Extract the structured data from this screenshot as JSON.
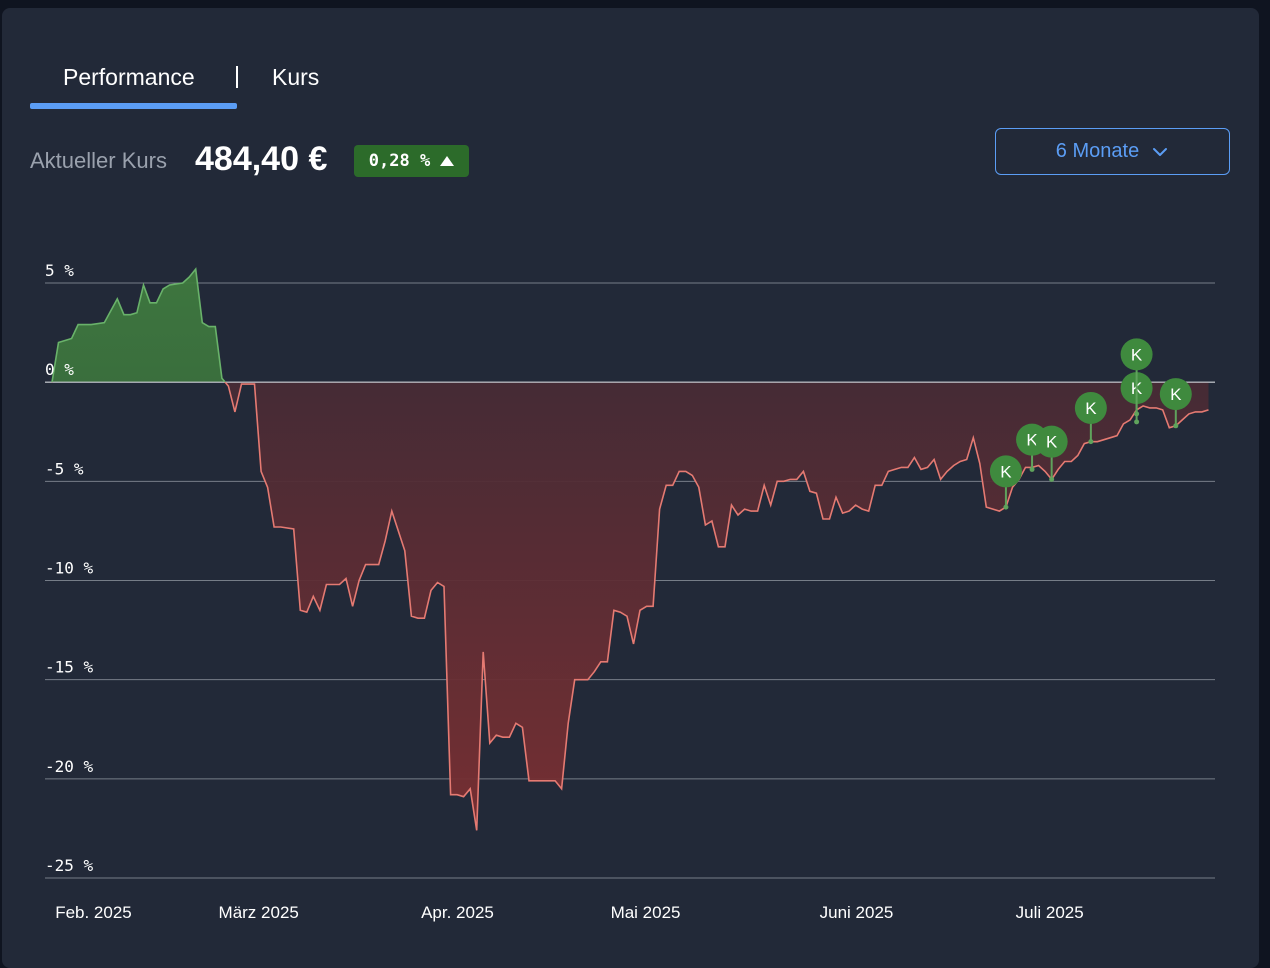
{
  "tabs": {
    "performance": "Performance",
    "kurs": "Kurs"
  },
  "price": {
    "label": "Aktueller Kurs",
    "value": "484,40 €",
    "change": "0,28 %"
  },
  "range": {
    "selected": "6 Monate"
  },
  "colors": {
    "accent": "#5b9df5",
    "positive_badge": "#2c6b2a",
    "gain_line": "#69b26a",
    "loss_line": "#e57a72",
    "marker": "#3f8a3e",
    "grid": "#8c929c"
  },
  "icons": {
    "change": "triangle-up-icon",
    "dropdown": "chevron-down-icon",
    "marker": "K"
  },
  "chart_data": {
    "type": "area",
    "yticks": [
      "5 %",
      "0 %",
      "-5 %",
      "-10 %",
      "-15 %",
      "-20 %",
      "-25 %"
    ],
    "ylim": [
      -25,
      5
    ],
    "xlim": [
      "2025-01-31",
      "2025-07-28"
    ],
    "xticks": [
      {
        "date": "2025-02-06",
        "label": "Feb. 2025"
      },
      {
        "date": "2025-03-03",
        "label": "März 2025"
      },
      {
        "date": "2025-04-03",
        "label": "Apr. 2025"
      },
      {
        "date": "2025-05-02",
        "label": "Mai 2025"
      },
      {
        "date": "2025-06-03",
        "label": "Juni 2025"
      },
      {
        "date": "2025-07-03",
        "label": "Juli 2025"
      }
    ],
    "series": [
      {
        "points": [
          [
            "2025-01-31",
            0.0
          ],
          [
            "2025-02-01",
            2.0
          ],
          [
            "2025-02-03",
            2.2
          ],
          [
            "2025-02-04",
            2.9
          ],
          [
            "2025-02-06",
            2.9
          ],
          [
            "2025-02-08",
            3.0
          ],
          [
            "2025-02-09",
            3.6
          ],
          [
            "2025-02-10",
            4.2
          ],
          [
            "2025-02-11",
            3.4
          ],
          [
            "2025-02-12",
            3.4
          ],
          [
            "2025-02-13",
            3.5
          ],
          [
            "2025-02-14",
            4.9
          ],
          [
            "2025-02-15",
            4.0
          ],
          [
            "2025-02-16",
            4.0
          ],
          [
            "2025-02-17",
            4.7
          ],
          [
            "2025-02-18",
            4.9
          ],
          [
            "2025-02-20",
            5.0
          ],
          [
            "2025-02-21",
            5.3
          ],
          [
            "2025-02-22",
            5.7
          ],
          [
            "2025-02-23",
            3.0
          ],
          [
            "2025-02-24",
            2.8
          ],
          [
            "2025-02-25",
            2.8
          ],
          [
            "2025-02-26",
            0.2
          ],
          [
            "2025-02-27",
            -0.2
          ],
          [
            "2025-02-28",
            -1.5
          ],
          [
            "2025-03-01",
            -0.1
          ],
          [
            "2025-03-02",
            -0.1
          ],
          [
            "2025-03-03",
            -0.1
          ],
          [
            "2025-03-04",
            -4.5
          ],
          [
            "2025-03-05",
            -5.3
          ],
          [
            "2025-03-06",
            -7.3
          ],
          [
            "2025-03-07",
            -7.3
          ],
          [
            "2025-03-09",
            -7.4
          ],
          [
            "2025-03-10",
            -11.5
          ],
          [
            "2025-03-11",
            -11.6
          ],
          [
            "2025-03-12",
            -10.8
          ],
          [
            "2025-03-13",
            -11.5
          ],
          [
            "2025-03-14",
            -10.2
          ],
          [
            "2025-03-16",
            -10.2
          ],
          [
            "2025-03-17",
            -9.9
          ],
          [
            "2025-03-18",
            -11.3
          ],
          [
            "2025-03-19",
            -10.0
          ],
          [
            "2025-03-20",
            -9.2
          ],
          [
            "2025-03-22",
            -9.2
          ],
          [
            "2025-03-23",
            -8.0
          ],
          [
            "2025-03-24",
            -6.5
          ],
          [
            "2025-03-25",
            -7.5
          ],
          [
            "2025-03-26",
            -8.5
          ],
          [
            "2025-03-27",
            -11.8
          ],
          [
            "2025-03-28",
            -11.9
          ],
          [
            "2025-03-29",
            -11.9
          ],
          [
            "2025-03-30",
            -10.5
          ],
          [
            "2025-03-31",
            -10.1
          ],
          [
            "2025-04-01",
            -10.3
          ],
          [
            "2025-04-02",
            -20.8
          ],
          [
            "2025-04-03",
            -20.8
          ],
          [
            "2025-04-04",
            -20.9
          ],
          [
            "2025-04-05",
            -20.5
          ],
          [
            "2025-04-06",
            -22.6
          ],
          [
            "2025-04-07",
            -13.6
          ],
          [
            "2025-04-08",
            -18.2
          ],
          [
            "2025-04-09",
            -17.8
          ],
          [
            "2025-04-10",
            -17.9
          ],
          [
            "2025-04-11",
            -17.9
          ],
          [
            "2025-04-12",
            -17.2
          ],
          [
            "2025-04-13",
            -17.4
          ],
          [
            "2025-04-14",
            -20.1
          ],
          [
            "2025-04-16",
            -20.1
          ],
          [
            "2025-04-18",
            -20.1
          ],
          [
            "2025-04-19",
            -20.5
          ],
          [
            "2025-04-20",
            -17.2
          ],
          [
            "2025-04-21",
            -15.0
          ],
          [
            "2025-04-23",
            -15.0
          ],
          [
            "2025-04-24",
            -14.6
          ],
          [
            "2025-04-25",
            -14.1
          ],
          [
            "2025-04-26",
            -14.1
          ],
          [
            "2025-04-27",
            -11.5
          ],
          [
            "2025-04-28",
            -11.6
          ],
          [
            "2025-04-29",
            -11.8
          ],
          [
            "2025-04-30",
            -13.2
          ],
          [
            "2025-05-01",
            -11.5
          ],
          [
            "2025-05-02",
            -11.3
          ],
          [
            "2025-05-03",
            -11.3
          ],
          [
            "2025-05-04",
            -6.4
          ],
          [
            "2025-05-05",
            -5.2
          ],
          [
            "2025-05-06",
            -5.2
          ],
          [
            "2025-05-07",
            -4.5
          ],
          [
            "2025-05-08",
            -4.5
          ],
          [
            "2025-05-09",
            -4.7
          ],
          [
            "2025-05-10",
            -5.3
          ],
          [
            "2025-05-11",
            -7.2
          ],
          [
            "2025-05-12",
            -7.0
          ],
          [
            "2025-05-13",
            -8.3
          ],
          [
            "2025-05-14",
            -8.3
          ],
          [
            "2025-05-15",
            -6.2
          ],
          [
            "2025-05-16",
            -6.7
          ],
          [
            "2025-05-17",
            -6.4
          ],
          [
            "2025-05-18",
            -6.5
          ],
          [
            "2025-05-19",
            -6.5
          ],
          [
            "2025-05-20",
            -5.2
          ],
          [
            "2025-05-21",
            -6.2
          ],
          [
            "2025-05-22",
            -5.0
          ],
          [
            "2025-05-23",
            -5.0
          ],
          [
            "2025-05-24",
            -4.9
          ],
          [
            "2025-05-25",
            -4.9
          ],
          [
            "2025-05-26",
            -4.5
          ],
          [
            "2025-05-27",
            -5.5
          ],
          [
            "2025-05-28",
            -5.6
          ],
          [
            "2025-05-29",
            -6.9
          ],
          [
            "2025-05-30",
            -6.9
          ],
          [
            "2025-05-31",
            -5.8
          ],
          [
            "2025-06-01",
            -6.6
          ],
          [
            "2025-06-02",
            -6.5
          ],
          [
            "2025-06-03",
            -6.2
          ],
          [
            "2025-06-04",
            -6.4
          ],
          [
            "2025-06-05",
            -6.5
          ],
          [
            "2025-06-06",
            -5.2
          ],
          [
            "2025-06-07",
            -5.2
          ],
          [
            "2025-06-08",
            -4.5
          ],
          [
            "2025-06-09",
            -4.4
          ],
          [
            "2025-06-10",
            -4.3
          ],
          [
            "2025-06-11",
            -4.3
          ],
          [
            "2025-06-12",
            -3.8
          ],
          [
            "2025-06-13",
            -4.4
          ],
          [
            "2025-06-14",
            -4.3
          ],
          [
            "2025-06-15",
            -3.9
          ],
          [
            "2025-06-16",
            -4.9
          ],
          [
            "2025-06-17",
            -4.5
          ],
          [
            "2025-06-18",
            -4.2
          ],
          [
            "2025-06-19",
            -4.0
          ],
          [
            "2025-06-20",
            -3.9
          ],
          [
            "2025-06-21",
            -2.8
          ],
          [
            "2025-06-22",
            -4.1
          ],
          [
            "2025-06-23",
            -6.3
          ],
          [
            "2025-06-24",
            -6.4
          ],
          [
            "2025-06-25",
            -6.5
          ],
          [
            "2025-06-26",
            -6.3
          ],
          [
            "2025-06-27",
            -5.3
          ],
          [
            "2025-06-28",
            -4.9
          ],
          [
            "2025-06-29",
            -4.3
          ],
          [
            "2025-06-30",
            -4.3
          ],
          [
            "2025-07-01",
            -4.2
          ],
          [
            "2025-07-02",
            -4.5
          ],
          [
            "2025-07-03",
            -4.9
          ],
          [
            "2025-07-04",
            -4.4
          ],
          [
            "2025-07-05",
            -4.0
          ],
          [
            "2025-07-06",
            -4.0
          ],
          [
            "2025-07-07",
            -3.7
          ],
          [
            "2025-07-08",
            -3.1
          ],
          [
            "2025-07-09",
            -3.0
          ],
          [
            "2025-07-10",
            -3.0
          ],
          [
            "2025-07-11",
            -2.9
          ],
          [
            "2025-07-12",
            -2.8
          ],
          [
            "2025-07-13",
            -2.7
          ],
          [
            "2025-07-14",
            -2.1
          ],
          [
            "2025-07-15",
            -1.9
          ],
          [
            "2025-07-16",
            -1.4
          ],
          [
            "2025-07-17",
            -1.2
          ],
          [
            "2025-07-18",
            -1.3
          ],
          [
            "2025-07-19",
            -1.3
          ],
          [
            "2025-07-20",
            -1.4
          ],
          [
            "2025-07-21",
            -2.3
          ],
          [
            "2025-07-22",
            -2.2
          ],
          [
            "2025-07-23",
            -1.9
          ],
          [
            "2025-07-24",
            -1.6
          ],
          [
            "2025-07-25",
            -1.5
          ],
          [
            "2025-07-26",
            -1.5
          ],
          [
            "2025-07-27",
            -1.4
          ]
        ]
      }
    ],
    "markers": [
      {
        "date": "2025-06-26",
        "value": -6.3,
        "label": "K",
        "level": -4.5
      },
      {
        "date": "2025-06-30",
        "value": -4.4,
        "label": "K",
        "level": -2.9
      },
      {
        "date": "2025-07-03",
        "value": -4.9,
        "label": "K",
        "level": -3.0
      },
      {
        "date": "2025-07-09",
        "value": -3.0,
        "label": "K",
        "level": -1.3
      },
      {
        "date": "2025-07-16",
        "value": -2.0,
        "label": "K",
        "level": -0.3
      },
      {
        "date": "2025-07-16",
        "value": -1.6,
        "label": "K",
        "level": 1.4
      },
      {
        "date": "2025-07-22",
        "value": -2.2,
        "label": "K",
        "level": -0.6
      }
    ],
    "grid": true,
    "legend": "none"
  }
}
